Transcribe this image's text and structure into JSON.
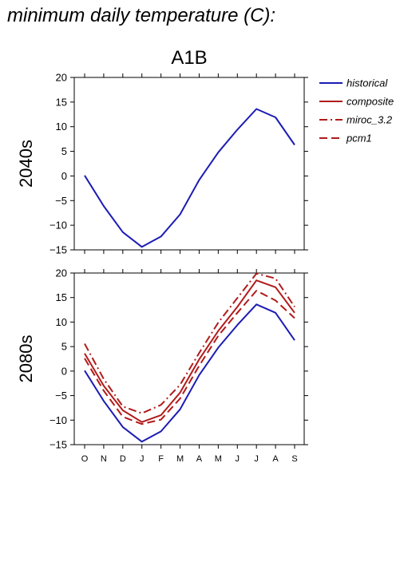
{
  "title": "minimum daily temperature (C):",
  "colors": {
    "historical": "#1c1cb4",
    "scenario": "#b11b1b"
  },
  "chart_data": [
    {
      "type": "line",
      "title": "A1B",
      "ylabel": "2040s",
      "ylim": [
        -15,
        20
      ],
      "yticks": [
        -15,
        -10,
        -5,
        0,
        5,
        10,
        15,
        20
      ],
      "categories": [
        "O",
        "N",
        "D",
        "J",
        "F",
        "M",
        "A",
        "M",
        "J",
        "J",
        "A",
        "S"
      ],
      "series": [
        {
          "name": "historical",
          "style": "solid",
          "color": "#1c1cb4",
          "values": [
            0.1,
            -6.1,
            -11.4,
            -14.4,
            -12.3,
            -7.8,
            -0.8,
            4.8,
            9.4,
            13.6,
            11.9,
            6.3
          ]
        }
      ]
    },
    {
      "type": "line",
      "title": "",
      "ylabel": "2080s",
      "ylim": [
        -15,
        20
      ],
      "yticks": [
        -15,
        -10,
        -5,
        0,
        5,
        10,
        15,
        20
      ],
      "categories": [
        "O",
        "N",
        "D",
        "J",
        "F",
        "M",
        "A",
        "M",
        "J",
        "J",
        "A",
        "S"
      ],
      "series": [
        {
          "name": "historical",
          "style": "solid",
          "color": "#1c1cb4",
          "values": [
            0.1,
            -6.1,
            -11.4,
            -14.4,
            -12.3,
            -7.8,
            -0.8,
            4.8,
            9.4,
            13.6,
            11.9,
            6.3
          ]
        },
        {
          "name": "composite",
          "style": "solid",
          "color": "#b11b1b",
          "values": [
            3.6,
            -3.0,
            -8.0,
            -10.4,
            -9.0,
            -4.4,
            2.4,
            8.2,
            13.1,
            18.5,
            17.1,
            11.9
          ]
        },
        {
          "name": "miroc_3.2",
          "style": "dashdot",
          "color": "#b11b1b",
          "values": [
            5.6,
            -1.6,
            -7.2,
            -8.6,
            -6.9,
            -2.8,
            3.7,
            9.9,
            14.9,
            19.9,
            18.9,
            13.1
          ]
        },
        {
          "name": "pcm1",
          "style": "dashed",
          "color": "#b11b1b",
          "values": [
            2.6,
            -4.0,
            -9.3,
            -10.8,
            -9.9,
            -5.6,
            1.1,
            7.2,
            11.9,
            16.4,
            14.4,
            10.8
          ]
        }
      ]
    }
  ],
  "legend": {
    "placement": "right",
    "items": [
      {
        "label": "historical",
        "style": "solid",
        "color": "#1c1cb4"
      },
      {
        "label": "composite",
        "style": "solid",
        "color": "#b11b1b"
      },
      {
        "label": "miroc_3.2",
        "style": "dashdot",
        "color": "#b11b1b"
      },
      {
        "label": "pcm1",
        "style": "dashed",
        "color": "#b11b1b"
      }
    ]
  }
}
